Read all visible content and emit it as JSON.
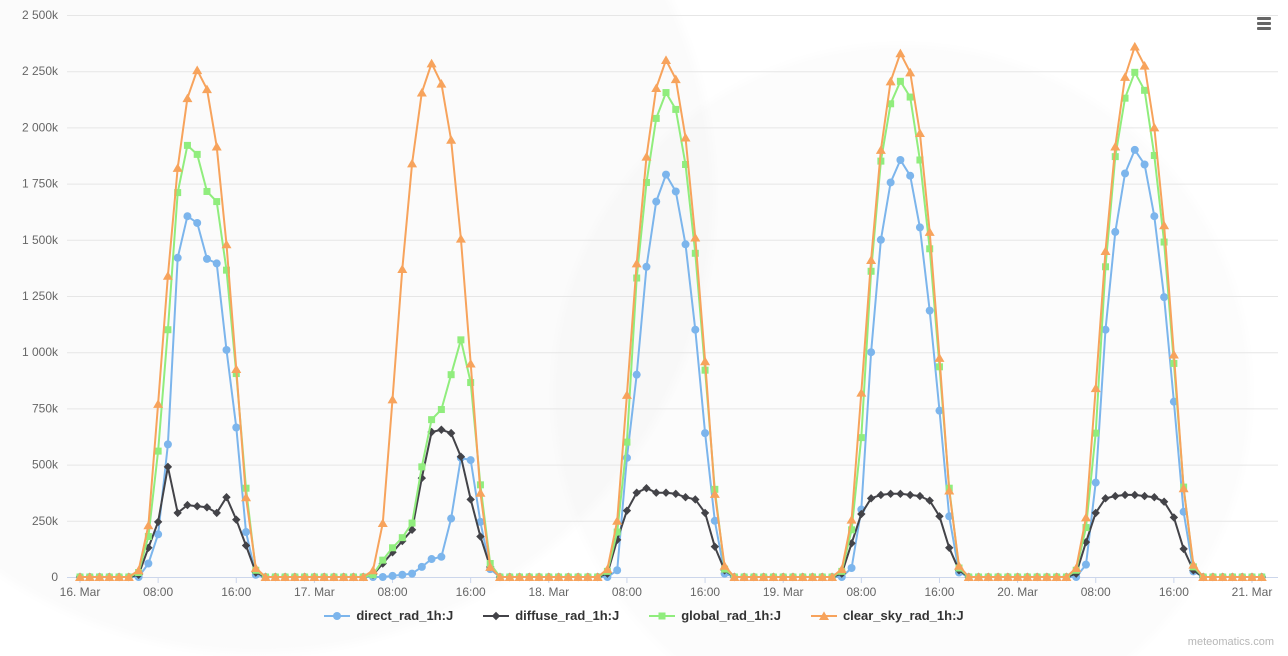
{
  "watermark": "meteomatics.com",
  "context_menu": {
    "icon": "hamburger-menu-icon"
  },
  "chart_data": {
    "type": "line",
    "title": "",
    "x_start": "16. Mar 00:00",
    "x_step_hours": 1,
    "x_total_points": 122,
    "x_tick_every_hours": 8,
    "x_tick_labels": [
      "16. Mar",
      "08:00",
      "16:00",
      "17. Mar",
      "08:00",
      "16:00",
      "18. Mar",
      "08:00",
      "16:00",
      "19. Mar",
      "08:00",
      "16:00",
      "20. Mar",
      "08:00",
      "16:00",
      "21. Mar"
    ],
    "y_tick_values": [
      0,
      250,
      500,
      750,
      1000,
      1250,
      1500,
      1750,
      2000,
      2250,
      2500
    ],
    "y_tick_labels": [
      "0",
      "250k",
      "500k",
      "750k",
      "1 000k",
      "1 250k",
      "1 500k",
      "1 750k",
      "2 000k",
      "2 250k",
      "2 500k"
    ],
    "ylim": [
      0,
      2500
    ],
    "values_scale": "thousands (k) of J, hourly values",
    "grid": "horizontal",
    "legend_position": "bottom-center",
    "series": [
      {
        "name": "direct_rad_1h:J",
        "color": "#7cb5ec",
        "marker": "circle",
        "values": [
          0,
          0,
          0,
          0,
          0,
          0,
          0,
          60,
          190,
          590,
          1420,
          1605,
          1575,
          1415,
          1395,
          1010,
          665,
          200,
          10,
          0,
          0,
          0,
          0,
          0,
          0,
          0,
          0,
          0,
          0,
          0,
          0,
          0,
          5,
          10,
          15,
          45,
          80,
          90,
          260,
          530,
          520,
          245,
          35,
          0,
          0,
          0,
          0,
          0,
          0,
          0,
          0,
          0,
          0,
          0,
          0,
          30,
          530,
          900,
          1380,
          1670,
          1790,
          1715,
          1480,
          1100,
          640,
          250,
          15,
          0,
          0,
          0,
          0,
          0,
          0,
          0,
          0,
          0,
          0,
          0,
          0,
          40,
          300,
          1000,
          1500,
          1755,
          1855,
          1785,
          1555,
          1185,
          740,
          270,
          20,
          0,
          0,
          0,
          0,
          0,
          0,
          0,
          0,
          0,
          0,
          0,
          0,
          55,
          420,
          1100,
          1535,
          1795,
          1900,
          1835,
          1605,
          1245,
          780,
          290,
          25,
          0,
          0,
          0,
          0,
          0,
          0,
          0
        ]
      },
      {
        "name": "diffuse_rad_1h:J",
        "color": "#434348",
        "marker": "diamond",
        "values": [
          0,
          0,
          0,
          0,
          0,
          0,
          10,
          130,
          245,
          490,
          285,
          320,
          315,
          310,
          285,
          355,
          255,
          140,
          20,
          0,
          0,
          0,
          0,
          0,
          0,
          0,
          0,
          0,
          0,
          0,
          10,
          60,
          110,
          160,
          210,
          440,
          645,
          655,
          640,
          535,
          345,
          180,
          45,
          0,
          0,
          0,
          0,
          0,
          0,
          0,
          0,
          0,
          0,
          0,
          15,
          165,
          295,
          375,
          395,
          375,
          375,
          370,
          355,
          345,
          285,
          135,
          30,
          0,
          0,
          0,
          0,
          0,
          0,
          0,
          0,
          0,
          0,
          0,
          15,
          150,
          280,
          350,
          365,
          370,
          370,
          365,
          360,
          340,
          270,
          130,
          30,
          0,
          0,
          0,
          0,
          0,
          0,
          0,
          0,
          0,
          0,
          0,
          15,
          155,
          285,
          350,
          360,
          365,
          365,
          360,
          355,
          335,
          265,
          125,
          30,
          0,
          0,
          0,
          0,
          0,
          0,
          0
        ]
      },
      {
        "name": "global_rad_1h:J",
        "color": "#90ed7d",
        "marker": "square",
        "values": [
          0,
          0,
          0,
          0,
          0,
          0,
          20,
          180,
          560,
          1100,
          1710,
          1920,
          1880,
          1715,
          1670,
          1365,
          905,
          395,
          30,
          0,
          0,
          0,
          0,
          0,
          0,
          0,
          0,
          0,
          0,
          0,
          10,
          75,
          130,
          175,
          240,
          490,
          700,
          745,
          900,
          1055,
          865,
          410,
          60,
          0,
          0,
          0,
          0,
          0,
          0,
          0,
          0,
          0,
          0,
          0,
          25,
          200,
          600,
          1330,
          1755,
          2040,
          2155,
          2080,
          1835,
          1440,
          920,
          390,
          35,
          0,
          0,
          0,
          0,
          0,
          0,
          0,
          0,
          0,
          0,
          0,
          25,
          210,
          620,
          1360,
          1850,
          2105,
          2205,
          2135,
          1855,
          1460,
          935,
          395,
          40,
          0,
          0,
          0,
          0,
          0,
          0,
          0,
          0,
          0,
          0,
          0,
          30,
          220,
          640,
          1380,
          1870,
          2130,
          2245,
          2165,
          1875,
          1490,
          950,
          400,
          45,
          0,
          0,
          0,
          0,
          0,
          0,
          0
        ]
      },
      {
        "name": "clear_sky_rad_1h:J",
        "color": "#f7a35c",
        "marker": "triangle",
        "values": [
          0,
          0,
          0,
          0,
          0,
          0,
          30,
          230,
          770,
          1340,
          1820,
          2130,
          2255,
          2170,
          1915,
          1480,
          925,
          355,
          40,
          0,
          0,
          0,
          0,
          0,
          0,
          0,
          0,
          0,
          0,
          0,
          30,
          240,
          790,
          1370,
          1840,
          2155,
          2285,
          2195,
          1945,
          1505,
          950,
          375,
          45,
          0,
          0,
          0,
          0,
          0,
          0,
          0,
          0,
          0,
          0,
          0,
          35,
          250,
          810,
          1395,
          1870,
          2175,
          2300,
          2215,
          1955,
          1510,
          960,
          370,
          50,
          0,
          0,
          0,
          0,
          0,
          0,
          0,
          0,
          0,
          0,
          0,
          35,
          255,
          820,
          1410,
          1900,
          2205,
          2330,
          2245,
          1975,
          1535,
          975,
          385,
          50,
          0,
          0,
          0,
          0,
          0,
          0,
          0,
          0,
          0,
          0,
          0,
          40,
          265,
          840,
          1450,
          1915,
          2225,
          2360,
          2275,
          2000,
          1565,
          990,
          395,
          55,
          0,
          0,
          0,
          0,
          0,
          0,
          0
        ]
      }
    ]
  }
}
